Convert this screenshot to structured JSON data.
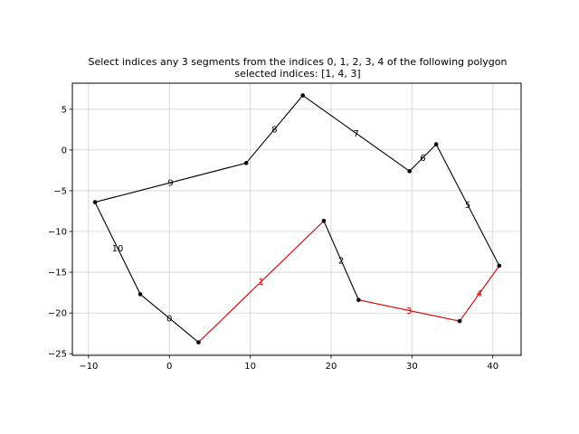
{
  "chart_data": {
    "type": "line",
    "title": "Select indices any 3 segments from the indices 0, 1, 2, 3, 4 of the following polygon",
    "subtitle": "selected indices: [1, 4, 3]",
    "xlabel": "",
    "ylabel": "",
    "xlim": [
      -12,
      43.5
    ],
    "ylim": [
      -25.2,
      8.2
    ],
    "grid": true,
    "xticks": [
      -10,
      0,
      10,
      20,
      30,
      40
    ],
    "yticks": [
      5,
      0,
      -5,
      -10,
      -15,
      -20,
      -25
    ],
    "xtick_labels": [
      "−10",
      "0",
      "10",
      "20",
      "30",
      "40"
    ],
    "ytick_labels": [
      "5",
      "0",
      "−5",
      "−10",
      "−15",
      "−20",
      "−25"
    ],
    "vertices": [
      [
        -3.6,
        -17.7
      ],
      [
        3.6,
        -23.6
      ],
      [
        19.1,
        -8.7
      ],
      [
        23.4,
        -18.4
      ],
      [
        35.9,
        -21.0
      ],
      [
        40.8,
        -14.2
      ],
      [
        33.0,
        0.7
      ],
      [
        29.7,
        -2.6
      ],
      [
        16.5,
        6.7
      ],
      [
        9.5,
        -1.6
      ],
      [
        -9.2,
        -6.4
      ]
    ],
    "segments": [
      {
        "label": "0",
        "from": 0,
        "to": 1,
        "selected": false
      },
      {
        "label": "1",
        "from": 1,
        "to": 2,
        "selected": true
      },
      {
        "label": "2",
        "from": 2,
        "to": 3,
        "selected": false
      },
      {
        "label": "3",
        "from": 3,
        "to": 4,
        "selected": true
      },
      {
        "label": "4",
        "from": 4,
        "to": 5,
        "selected": true
      },
      {
        "label": "5",
        "from": 5,
        "to": 6,
        "selected": false
      },
      {
        "label": "6",
        "from": 6,
        "to": 7,
        "selected": false
      },
      {
        "label": "7",
        "from": 7,
        "to": 8,
        "selected": false
      },
      {
        "label": "8",
        "from": 8,
        "to": 9,
        "selected": false
      },
      {
        "label": "9",
        "from": 9,
        "to": 10,
        "selected": false
      },
      {
        "label": "10",
        "from": 10,
        "to": 0,
        "selected": false
      }
    ],
    "colors": {
      "default": "#000000",
      "selected": "#dd0000",
      "grid": "#d0d0d0"
    }
  }
}
